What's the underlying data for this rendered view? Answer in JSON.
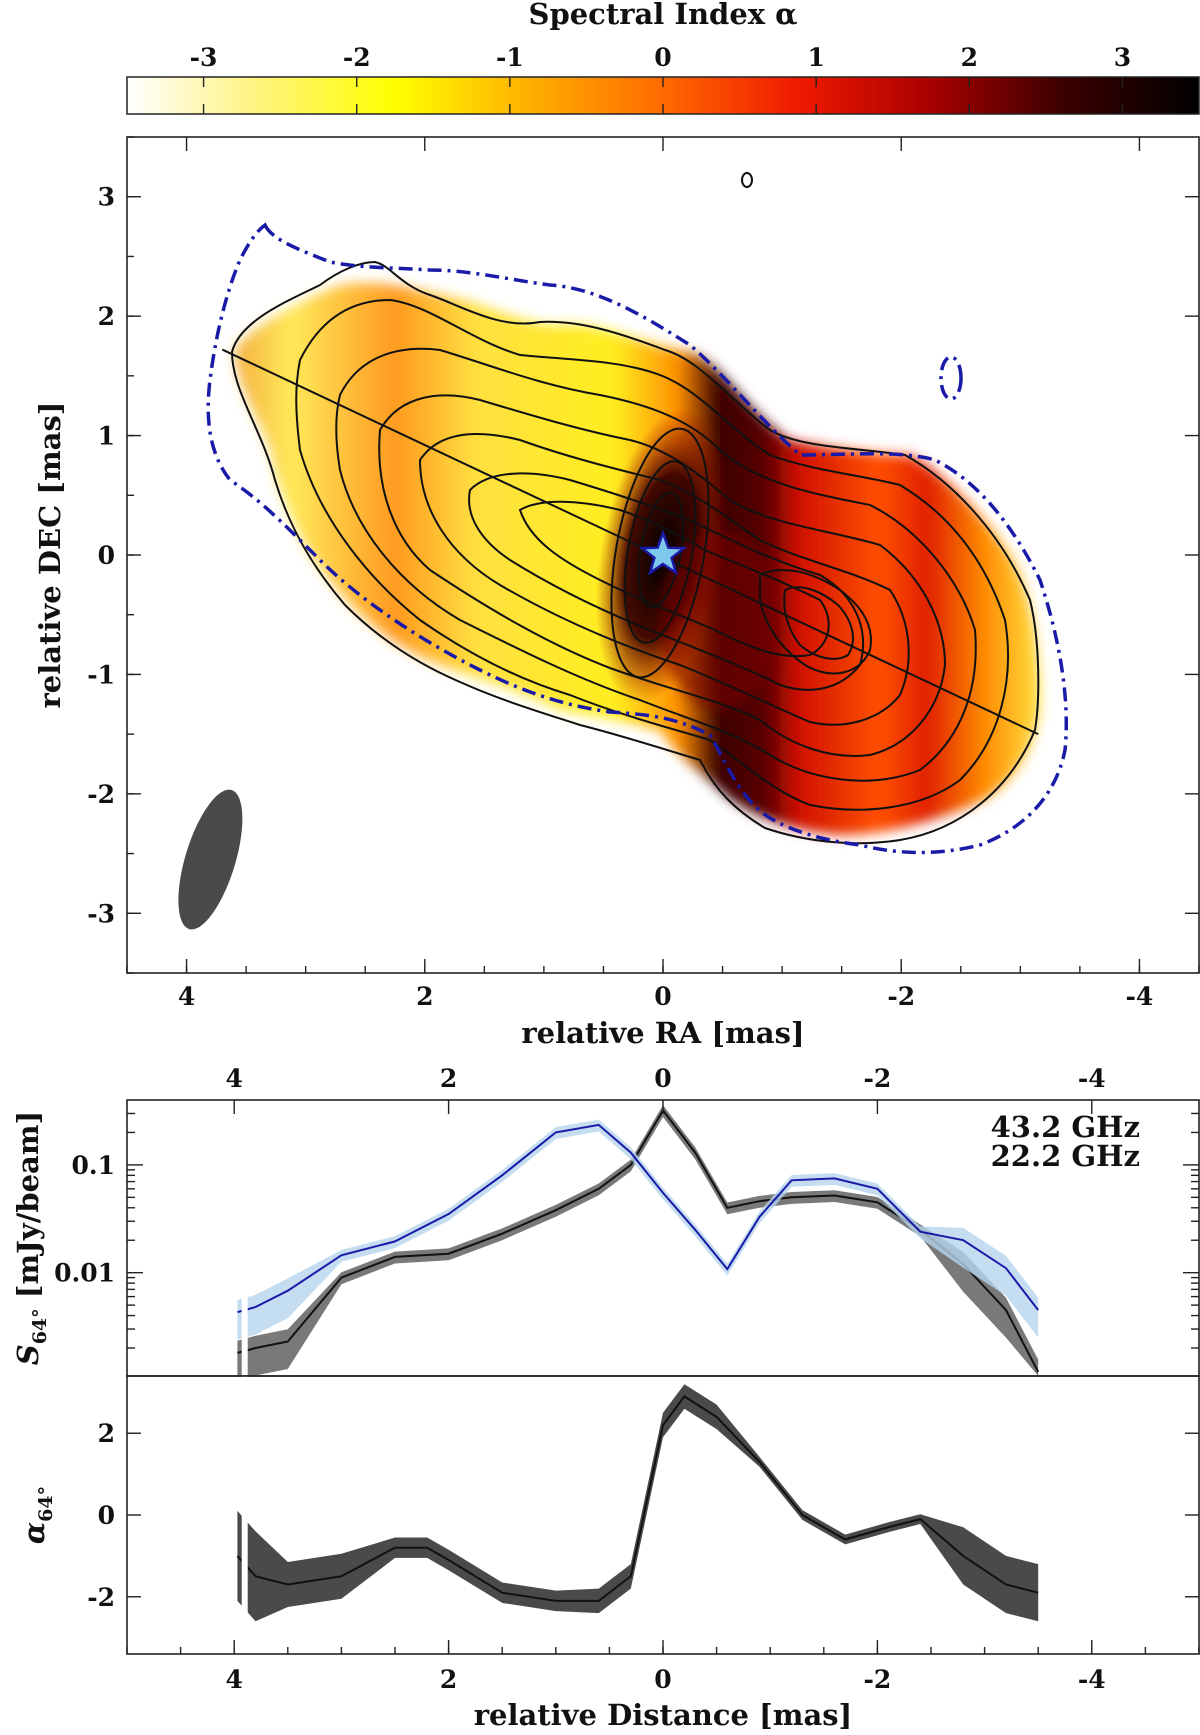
{
  "colorbar": {
    "title": "Spectral Index α",
    "ticks": [
      "-3",
      "-2",
      "-1",
      "0",
      "1",
      "2",
      "3"
    ],
    "range": [
      -3.5,
      3.5
    ],
    "colors": [
      "#ffffff",
      "#fff37a",
      "#ffff00",
      "#ffb000",
      "#ff6a00",
      "#f01a00",
      "#a80000",
      "#3a0000",
      "#000000"
    ]
  },
  "chart_data": [
    {
      "type": "heatmap",
      "title": "",
      "xlabel": "relative RA [mas]",
      "ylabel": "relative DEC [mas]",
      "xlim": [
        4.5,
        -4.5
      ],
      "ylim": [
        -3.5,
        3.5
      ],
      "xticks": [
        "4",
        "2",
        "0",
        "-2",
        "-4"
      ],
      "yticks": [
        "3",
        "2",
        "1",
        "0",
        "-1",
        "-2",
        "-3"
      ],
      "core_marker": {
        "x": 0,
        "y": 0,
        "symbol": "star"
      },
      "profile_line": {
        "from": [
          3.7,
          1.72
        ],
        "to": [
          -3.15,
          -1.5
        ]
      },
      "beam": {
        "x": 3.8,
        "y": -2.55,
        "major": 1.22,
        "minor": 0.42,
        "pa_deg": 17
      },
      "blue_contour": "22.2 GHz lowest contour (dash-dot)",
      "black_contours": "43.2 GHz total intensity contours"
    },
    {
      "type": "line",
      "ylabel": "S_64° [mJy/beam]",
      "xlim": [
        5,
        -5
      ],
      "ylim_log": [
        0.0011,
        0.4
      ],
      "top_xticks": [
        "4",
        "2",
        "0",
        "-2",
        "-4"
      ],
      "yticks": [
        "0.1",
        "0.01"
      ],
      "x": [
        3.97,
        3.8,
        3.5,
        3.0,
        2.5,
        2.0,
        1.5,
        1.0,
        0.6,
        0.3,
        0.0,
        -0.3,
        -0.6,
        -0.9,
        -1.2,
        -1.6,
        -2.0,
        -2.4,
        -2.8,
        -3.2,
        -3.5
      ],
      "series": [
        {
          "name": "43.2 GHz",
          "color": "#111111",
          "values": [
            0.0018,
            0.002,
            0.0023,
            0.009,
            0.014,
            0.015,
            0.023,
            0.038,
            0.06,
            0.1,
            0.32,
            0.13,
            0.04,
            0.046,
            0.05,
            0.052,
            0.045,
            0.025,
            0.012,
            0.0045,
            0.0012
          ]
        },
        {
          "name": "22.2 GHz",
          "color": "#1a1aa8",
          "values": [
            0.0043,
            0.0048,
            0.0068,
            0.0145,
            0.0195,
            0.035,
            0.08,
            0.2,
            0.235,
            0.13,
            0.055,
            0.025,
            0.0108,
            0.033,
            0.072,
            0.075,
            0.06,
            0.024,
            0.02,
            0.011,
            0.0045
          ]
        }
      ]
    },
    {
      "type": "line",
      "ylabel": "α_64°",
      "xlabel": "relative Distance [mas]",
      "xlim": [
        5,
        -5
      ],
      "ylim": [
        -3.4,
        3.4
      ],
      "xticks": [
        "4",
        "2",
        "0",
        "-2",
        "-4"
      ],
      "yticks": [
        "2",
        "0",
        "-2"
      ],
      "x": [
        3.97,
        3.8,
        3.5,
        3.0,
        2.5,
        2.2,
        2.0,
        1.5,
        1.0,
        0.6,
        0.3,
        0.0,
        -0.2,
        -0.5,
        -0.9,
        -1.3,
        -1.7,
        -2.1,
        -2.4,
        -2.8,
        -3.2,
        -3.5
      ],
      "series": [
        {
          "name": "alpha",
          "color": "#111111",
          "values": [
            -1.0,
            -1.5,
            -1.7,
            -1.5,
            -0.8,
            -0.8,
            -1.1,
            -1.9,
            -2.1,
            -2.1,
            -1.5,
            2.2,
            2.9,
            2.4,
            1.3,
            0.0,
            -0.6,
            -0.3,
            -0.1,
            -1.0,
            -1.7,
            -1.9
          ]
        }
      ]
    }
  ],
  "legend": {
    "item1": "43.2 GHz",
    "item2": "22.2 GHz",
    "item1_color": "#222222",
    "item2_color": "#1a1aa8"
  }
}
